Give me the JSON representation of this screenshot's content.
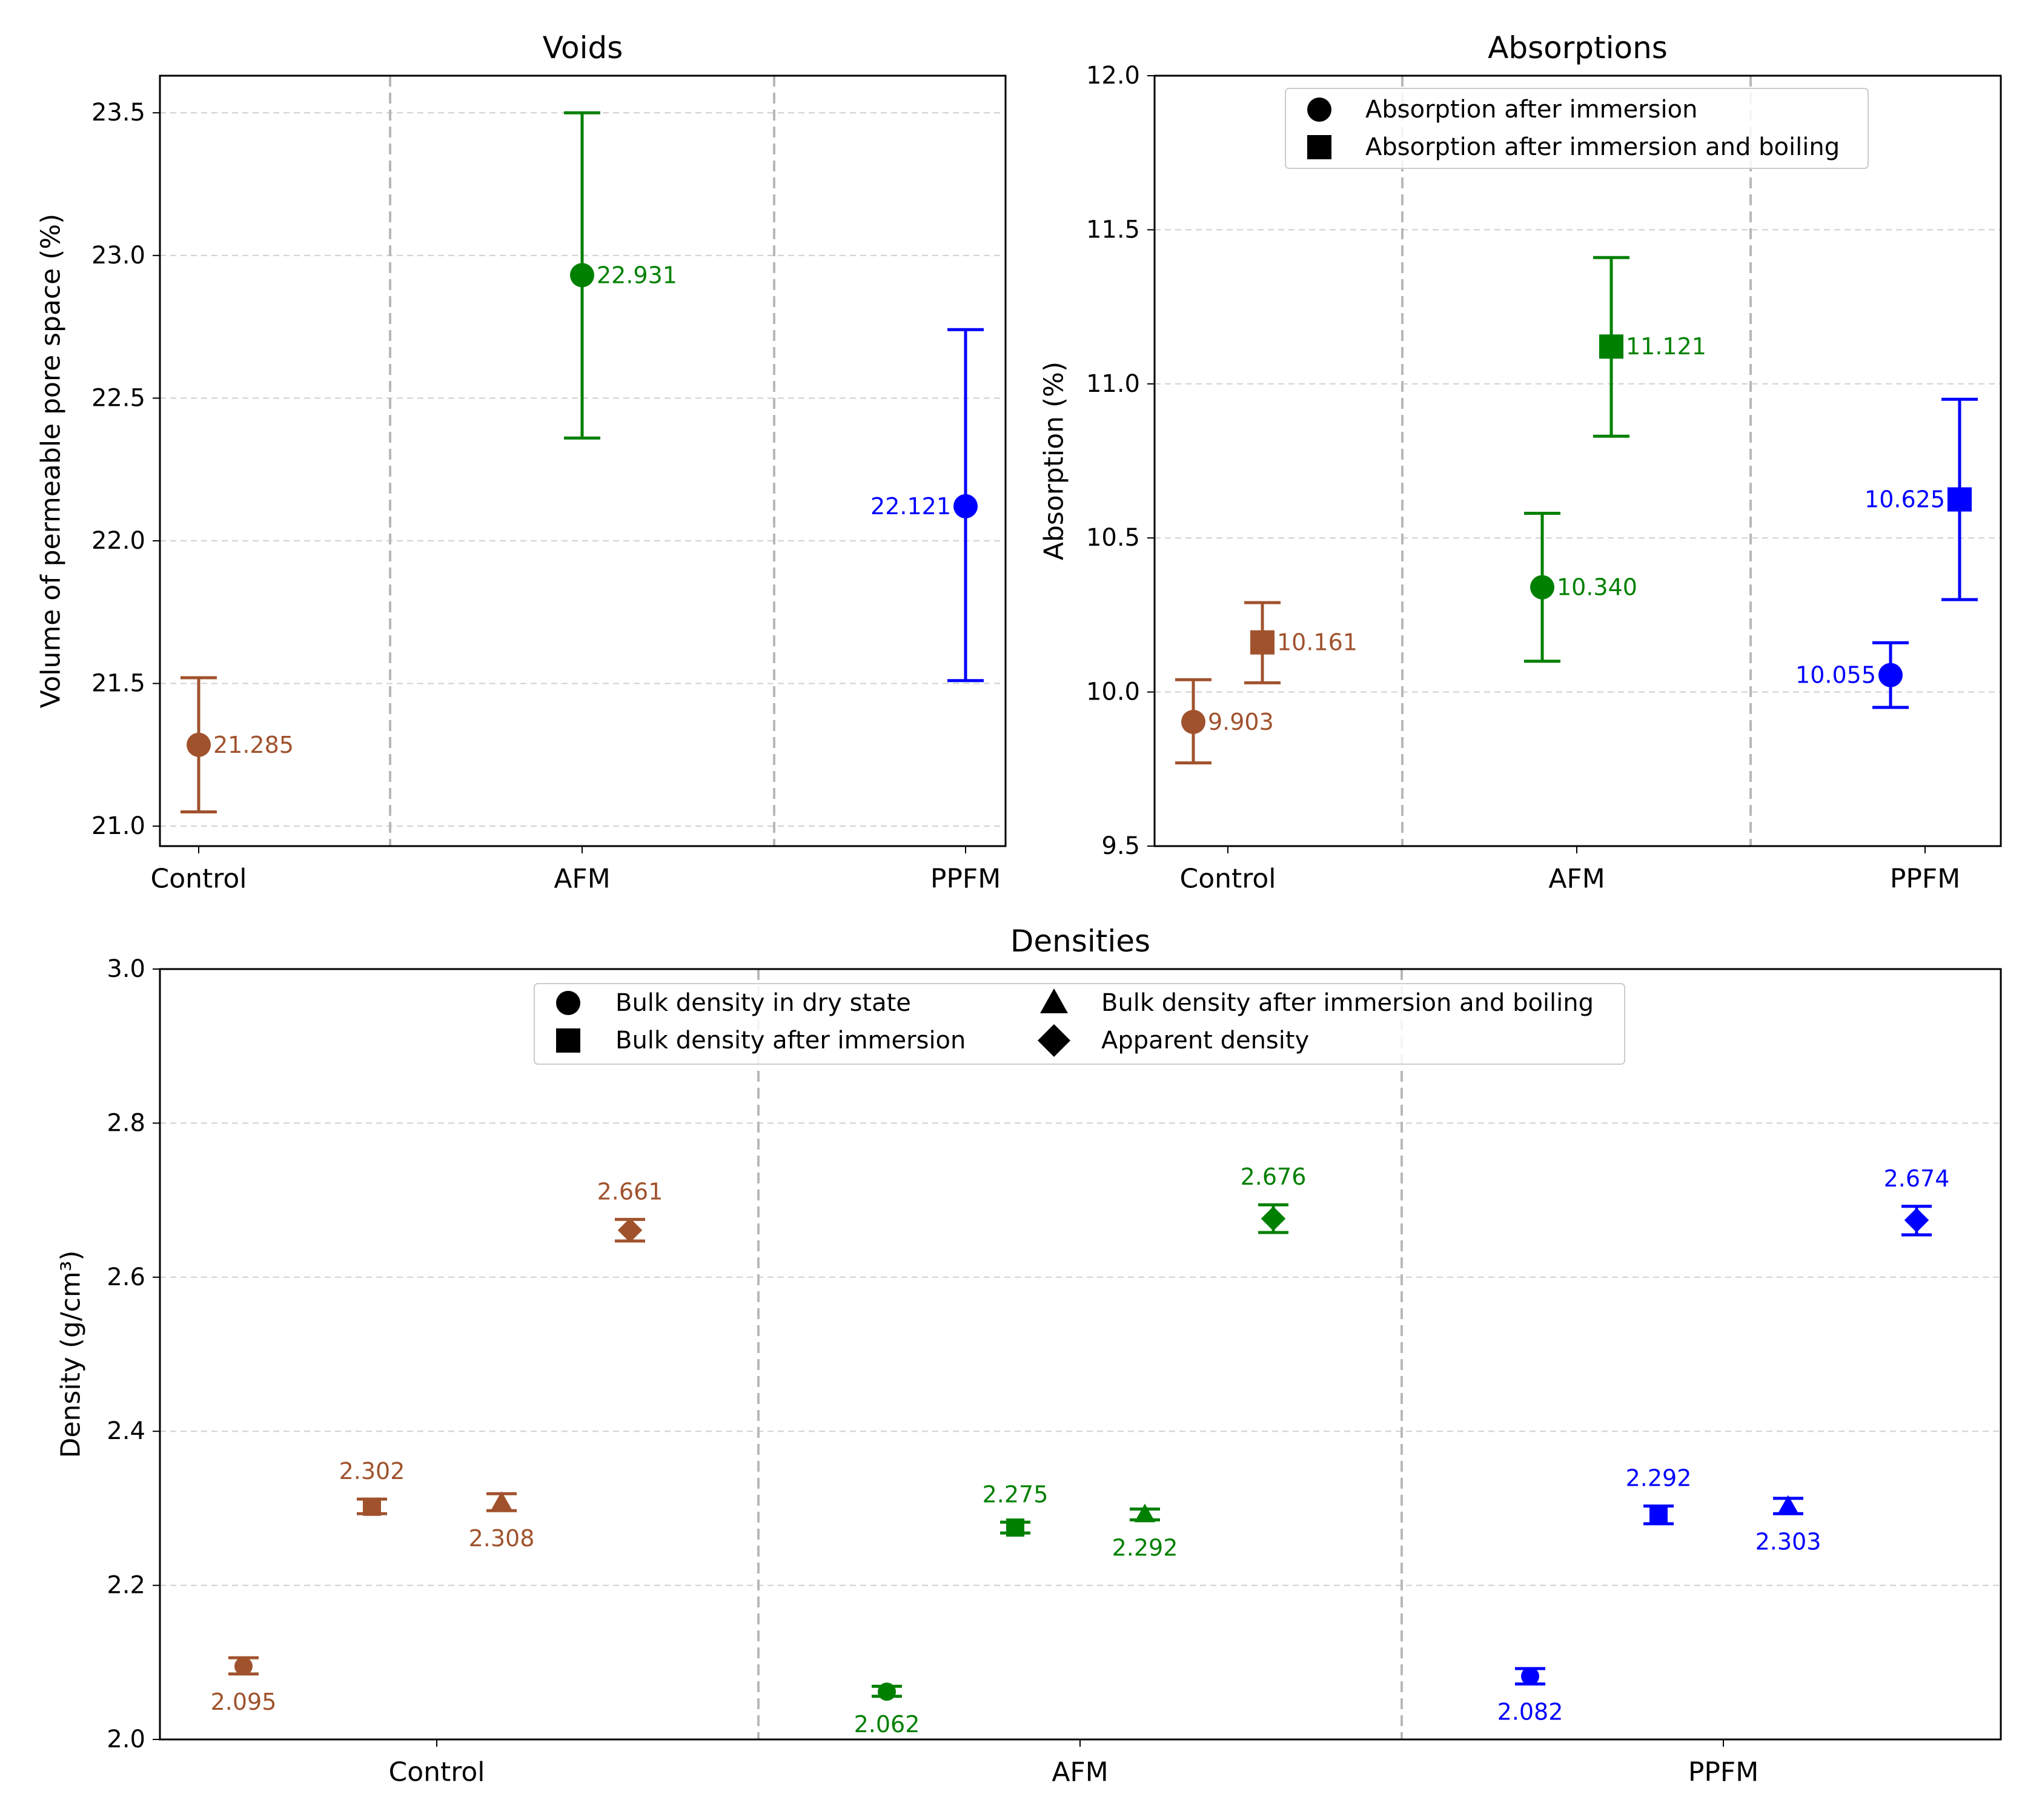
{
  "figure": {
    "colors": {
      "Control": "#a0522d",
      "AFM": "#008000",
      "PPFM": "#0000ff"
    }
  },
  "chart_data": [
    {
      "id": "voids",
      "type": "scatter",
      "title": "Voids",
      "xlabel": "",
      "ylabel": "Volume of permeable pore space (%)",
      "ylim": [
        20.93,
        23.63
      ],
      "yticks": [
        "21.0",
        "21.5",
        "22.0",
        "22.5",
        "23.0",
        "23.5"
      ],
      "grid": "y-dashed",
      "categories": [
        "Control",
        "AFM",
        "PPFM"
      ],
      "series": [
        {
          "name": "Volume of permeable pore space",
          "marker": "circle",
          "points": [
            {
              "category": "Control",
              "value": 21.285,
              "label": "21.285",
              "err_low": 21.05,
              "err_high": 21.52,
              "label_side": "right"
            },
            {
              "category": "AFM",
              "value": 22.931,
              "label": "22.931",
              "err_low": 22.36,
              "err_high": 23.5,
              "label_side": "right"
            },
            {
              "category": "PPFM",
              "value": 22.121,
              "label": "22.121",
              "err_low": 21.51,
              "err_high": 22.74,
              "label_side": "left"
            }
          ]
        }
      ]
    },
    {
      "id": "absorptions",
      "type": "scatter",
      "title": "Absorptions",
      "xlabel": "",
      "ylabel": "Absorption (%)",
      "ylim": [
        9.5,
        12.0
      ],
      "yticks": [
        "9.5",
        "10.0",
        "10.5",
        "11.0",
        "11.5",
        "12.0"
      ],
      "grid": "y-dashed",
      "categories": [
        "Control",
        "AFM",
        "PPFM"
      ],
      "legend": {
        "placement": "top-center",
        "entries": [
          {
            "marker": "circle",
            "label": "Absorption after immersion"
          },
          {
            "marker": "square",
            "label": "Absorption after immersion and boiling"
          }
        ]
      },
      "series": [
        {
          "name": "Absorption after immersion",
          "marker": "circle",
          "points": [
            {
              "category": "Control",
              "value": 9.903,
              "label": "9.903",
              "err_low": 9.77,
              "err_high": 10.04,
              "label_side": "right"
            },
            {
              "category": "AFM",
              "value": 10.34,
              "label": "10.340",
              "err_low": 10.1,
              "err_high": 10.58,
              "label_side": "right"
            },
            {
              "category": "PPFM",
              "value": 10.055,
              "label": "10.055",
              "err_low": 9.95,
              "err_high": 10.16,
              "label_side": "left"
            }
          ]
        },
        {
          "name": "Absorption after immersion and boiling",
          "marker": "square",
          "points": [
            {
              "category": "Control",
              "value": 10.161,
              "label": "10.161",
              "err_low": 10.03,
              "err_high": 10.29,
              "label_side": "right"
            },
            {
              "category": "AFM",
              "value": 11.121,
              "label": "11.121",
              "err_low": 10.83,
              "err_high": 11.41,
              "label_side": "right"
            },
            {
              "category": "PPFM",
              "value": 10.625,
              "label": "10.625",
              "err_low": 10.3,
              "err_high": 10.95,
              "label_side": "left"
            }
          ]
        }
      ]
    },
    {
      "id": "densities",
      "type": "scatter",
      "title": "Densities",
      "xlabel": "",
      "ylabel": "Density (g/cm³)",
      "ylim": [
        2.0,
        3.0
      ],
      "yticks": [
        "2.0",
        "2.2",
        "2.4",
        "2.6",
        "2.8",
        "3.0"
      ],
      "grid": "y-dashed",
      "categories": [
        "Control",
        "AFM",
        "PPFM"
      ],
      "legend": {
        "placement": "top-center",
        "entries": [
          {
            "marker": "circle",
            "label": "Bulk density in dry state"
          },
          {
            "marker": "square",
            "label": "Bulk density after immersion"
          },
          {
            "marker": "triangle",
            "label": "Bulk density after immersion and boiling"
          },
          {
            "marker": "diamond",
            "label": "Apparent density"
          }
        ]
      },
      "series": [
        {
          "name": "Bulk density in dry state",
          "marker": "circle",
          "points": [
            {
              "category": "Control",
              "value": 2.095,
              "label": "2.095",
              "err_low": 2.085,
              "err_high": 2.106,
              "label_side": "below"
            },
            {
              "category": "AFM",
              "value": 2.062,
              "label": "2.062",
              "err_low": 2.056,
              "err_high": 2.069,
              "label_side": "below"
            },
            {
              "category": "PPFM",
              "value": 2.082,
              "label": "2.082",
              "err_low": 2.072,
              "err_high": 2.092,
              "label_side": "below"
            }
          ]
        },
        {
          "name": "Bulk density after immersion",
          "marker": "square",
          "points": [
            {
              "category": "Control",
              "value": 2.302,
              "label": "2.302",
              "err_low": 2.293,
              "err_high": 2.312,
              "label_side": "above"
            },
            {
              "category": "AFM",
              "value": 2.275,
              "label": "2.275",
              "err_low": 2.268,
              "err_high": 2.282,
              "label_side": "above"
            },
            {
              "category": "PPFM",
              "value": 2.292,
              "label": "2.292",
              "err_low": 2.28,
              "err_high": 2.303,
              "label_side": "above"
            }
          ]
        },
        {
          "name": "Bulk density after immersion and boiling",
          "marker": "triangle",
          "points": [
            {
              "category": "Control",
              "value": 2.308,
              "label": "2.308",
              "err_low": 2.297,
              "err_high": 2.319,
              "label_side": "below"
            },
            {
              "category": "AFM",
              "value": 2.292,
              "label": "2.292",
              "err_low": 2.285,
              "err_high": 2.299,
              "label_side": "below"
            },
            {
              "category": "PPFM",
              "value": 2.303,
              "label": "2.303",
              "err_low": 2.293,
              "err_high": 2.313,
              "label_side": "below"
            }
          ]
        },
        {
          "name": "Apparent density",
          "marker": "diamond",
          "points": [
            {
              "category": "Control",
              "value": 2.661,
              "label": "2.661",
              "err_low": 2.647,
              "err_high": 2.675,
              "label_side": "above"
            },
            {
              "category": "AFM",
              "value": 2.676,
              "label": "2.676",
              "err_low": 2.658,
              "err_high": 2.694,
              "label_side": "above"
            },
            {
              "category": "PPFM",
              "value": 2.674,
              "label": "2.674",
              "err_low": 2.655,
              "err_high": 2.692,
              "label_side": "above"
            }
          ]
        }
      ]
    }
  ]
}
